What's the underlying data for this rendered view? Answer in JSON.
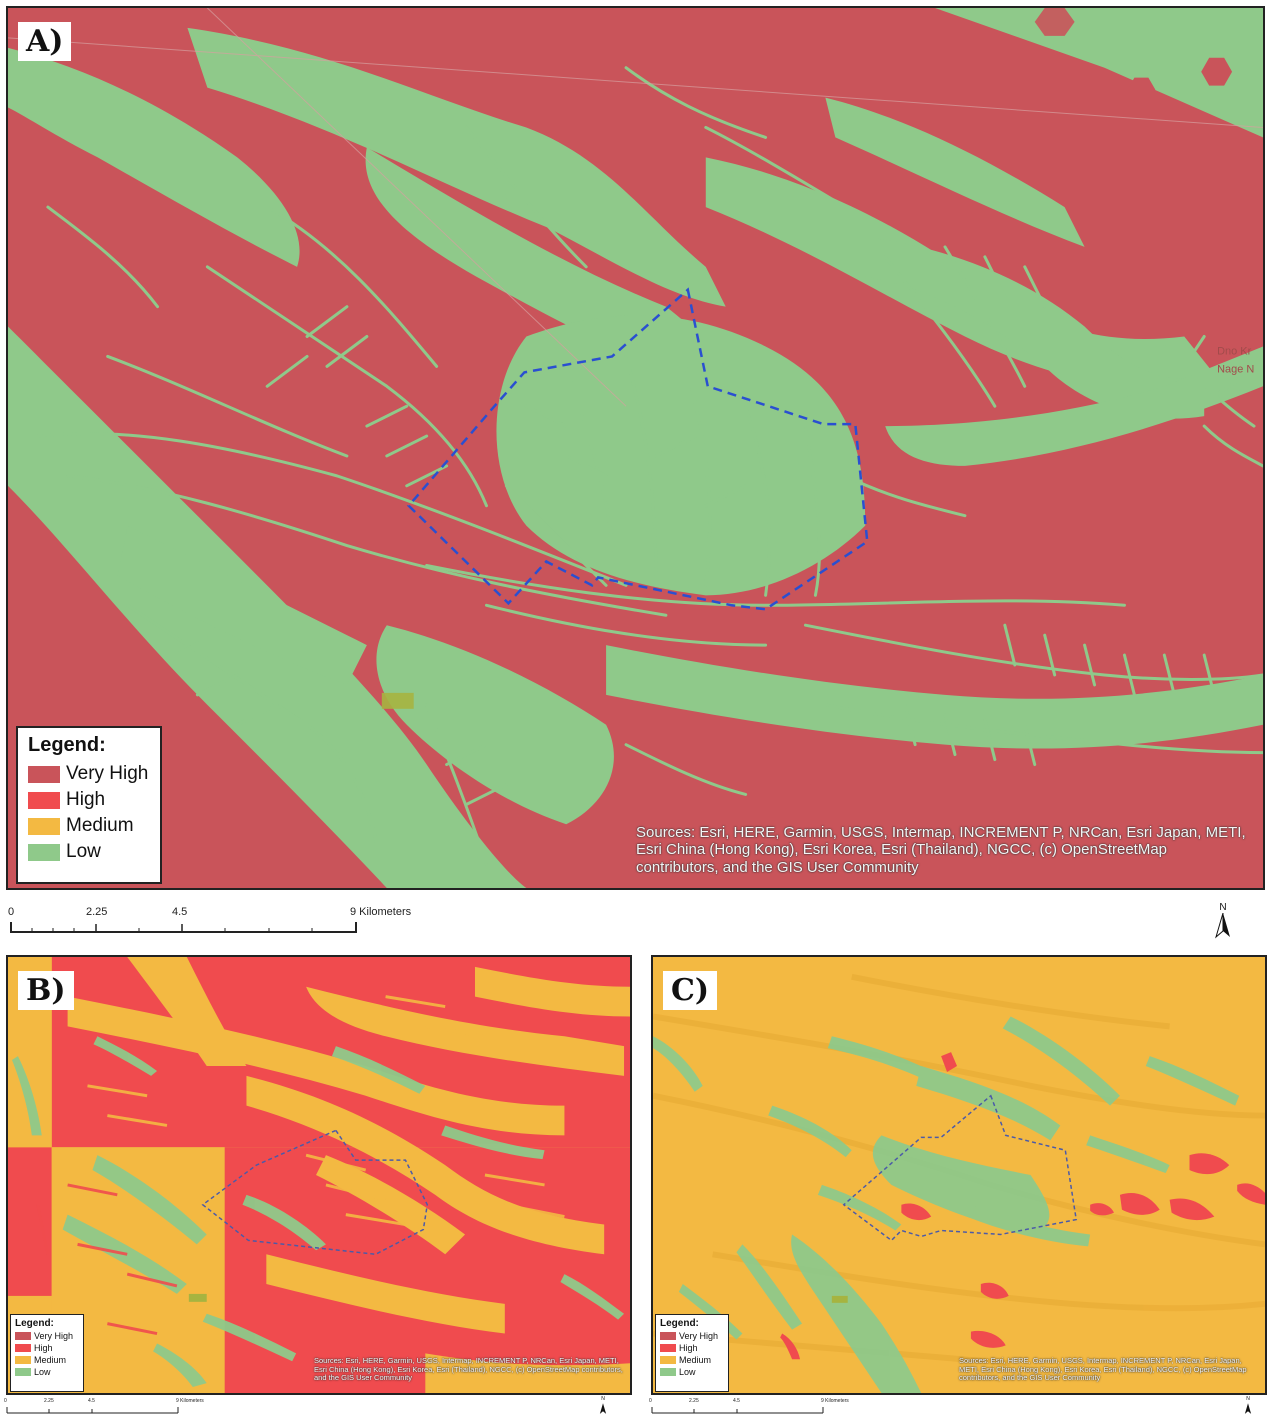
{
  "colors": {
    "very_high": "#c9545a",
    "high": "#f04b4e",
    "medium": "#f3b942",
    "low": "#8fc98a"
  },
  "panels": [
    {
      "id": "A",
      "label": "A)",
      "legend": {
        "title": "Legend:",
        "items": [
          {
            "label": "Very High",
            "color": "#c9545a"
          },
          {
            "label": "High",
            "color": "#f04b4e"
          },
          {
            "label": "Medium",
            "color": "#f3b942"
          },
          {
            "label": "Low",
            "color": "#8fc98a"
          }
        ]
      },
      "credits": "Sources: Esri, HERE, Garmin, USGS, Intermap, INCREMENT P, NRCan, Esri Japan, METI, Esri China (Hong Kong), Esri Korea, Esri (Thailand), NGCC, (c) OpenStreetMap contributors, and the GIS User Community",
      "scale": {
        "ticks": [
          "0",
          "2.25",
          "4.5",
          "9 Kilometers"
        ]
      },
      "north": "N"
    },
    {
      "id": "B",
      "label": "B)",
      "legend": {
        "title": "Legend:",
        "items": [
          {
            "label": "Very High",
            "color": "#c9545a"
          },
          {
            "label": "High",
            "color": "#f04b4e"
          },
          {
            "label": "Medium",
            "color": "#f3b942"
          },
          {
            "label": "Low",
            "color": "#8fc98a"
          }
        ]
      },
      "credits": "Sources: Esri, HERE, Garmin, USGS, Intermap, INCREMENT P, NRCan, Esri Japan, METI, Esri China (Hong Kong), Esri Korea, Esri (Thailand), NGCC, (c) OpenStreetMap contributors, and the GIS User Community",
      "scale": {
        "ticks": [
          "0",
          "2.25",
          "4.5",
          "9 Kilometers"
        ]
      },
      "north": "N"
    },
    {
      "id": "C",
      "label": "C)",
      "legend": {
        "title": "Legend:",
        "items": [
          {
            "label": "Very High",
            "color": "#c9545a"
          },
          {
            "label": "High",
            "color": "#f04b4e"
          },
          {
            "label": "Medium",
            "color": "#f3b942"
          },
          {
            "label": "Low",
            "color": "#8fc98a"
          }
        ]
      },
      "credits": "Sources: Esri, HERE, Garmin, USGS, Intermap, INCREMENT P, NRCan, Esri Japan, METI, Esri China (Hong Kong), Esri Korea, Esri (Thailand), NGCC, (c) OpenStreetMap contributors, and the GIS User Community",
      "scale": {
        "ticks": [
          "0",
          "2.25",
          "4.5",
          "9 Kilometers"
        ]
      },
      "north": "N"
    }
  ]
}
